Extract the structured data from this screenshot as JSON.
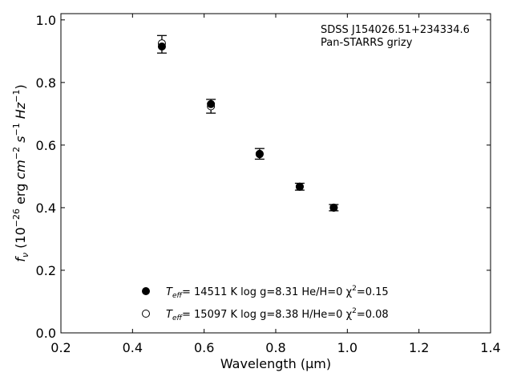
{
  "chart_data": {
    "type": "scatter",
    "xlabel": "Wavelength (μm)",
    "ylabel_parts": {
      "f": "f",
      "nu": "ν",
      "pre": " (10",
      "exp26": "−26",
      "erg": " erg ",
      "cm": "cm",
      "exp_neg2": "−2",
      "s": " s",
      "exp_neg1a": "−1",
      "hz": " Hz",
      "exp_neg1b": "−1",
      "post": ")"
    },
    "xlim": [
      0.2,
      1.4
    ],
    "ylim": [
      0.0,
      1.02
    ],
    "xticks": [
      0.2,
      0.4,
      0.6,
      0.8,
      1.0,
      1.2,
      1.4
    ],
    "xtick_labels": [
      "0.2",
      "0.4",
      "0.6",
      "0.8",
      "1.0",
      "1.2",
      "1.4"
    ],
    "yticks": [
      0.0,
      0.2,
      0.4,
      0.6,
      0.8,
      1.0
    ],
    "ytick_labels": [
      "0.0",
      "0.2",
      "0.4",
      "0.6",
      "0.8",
      "1.0"
    ],
    "grid": false,
    "legend_position": "lower-center",
    "annotation": {
      "line1": "SDSS J154026.51+234334.6",
      "line2": "Pan-STARRS grizy"
    },
    "observed": {
      "x": [
        0.482,
        0.619,
        0.755,
        0.867,
        0.962
      ],
      "y": [
        0.922,
        0.724,
        0.572,
        0.467,
        0.4
      ],
      "yerr": [
        0.028,
        0.022,
        0.017,
        0.011,
        0.01
      ]
    },
    "series": [
      {
        "marker": "filled",
        "x": [
          0.482,
          0.619,
          0.755,
          0.867,
          0.962
        ],
        "y": [
          0.915,
          0.731,
          0.571,
          0.467,
          0.4
        ],
        "legend": {
          "t": "T",
          "sub": "eff",
          "rest": "= 14511 K  log g=8.31  He/H=0  χ",
          "sup": "2",
          "tail": "=0.15"
        }
      },
      {
        "marker": "open",
        "x": [
          0.482,
          0.619,
          0.755,
          0.867,
          0.962
        ],
        "y": [
          0.925,
          0.724,
          0.572,
          0.467,
          0.4
        ],
        "legend": {
          "t": "T",
          "sub": "eff",
          "rest": "= 15097 K  log g=8.38  H/He=0  χ",
          "sup": "2",
          "tail": "=0.08"
        }
      }
    ]
  }
}
